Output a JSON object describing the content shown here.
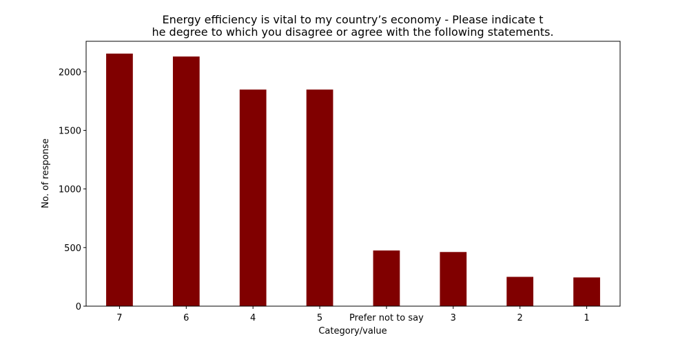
{
  "chart_data": {
    "type": "bar",
    "title_lines": [
      "Energy efficiency is vital to my country’s economy  - Please indicate t",
      "he degree to which you disagree or agree with the following statements."
    ],
    "xlabel": "Category/value",
    "ylabel": "No. of response",
    "categories": [
      "7",
      "6",
      "4",
      "5",
      "Prefer not to say",
      "3",
      "2",
      "1"
    ],
    "values": [
      2155,
      2130,
      1848,
      1848,
      475,
      462,
      250,
      245
    ],
    "ylim": [
      0,
      2260
    ],
    "yticks": [
      0,
      500,
      1000,
      1500,
      2000
    ],
    "bar_color": "#800000",
    "grid": false,
    "legend": "none"
  }
}
